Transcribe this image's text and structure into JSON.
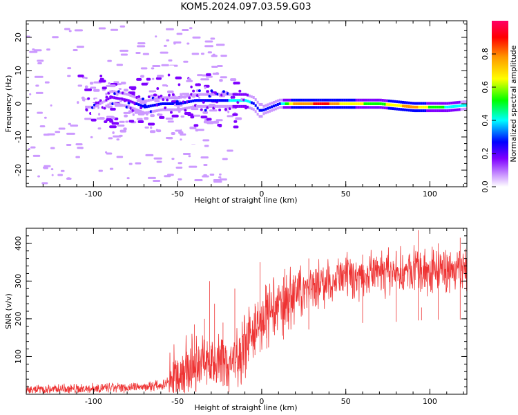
{
  "title": "KOM5.2024.097.03.59.G03",
  "chart_data": [
    {
      "type": "heatmap",
      "xlabel": "Height of straight line (km)",
      "ylabel": "Frequency (Hz)",
      "xlim": [
        -140,
        122
      ],
      "ylim": [
        -25,
        25
      ],
      "x_ticks": [
        "-100",
        "-50",
        "0",
        "50",
        "100"
      ],
      "y_ticks": [
        "20",
        "10",
        "0",
        "-10",
        "-20"
      ],
      "colorbar": {
        "label": "Normalized spectral amplitude",
        "range": [
          0,
          1
        ],
        "ticks": [
          "0.0",
          "0.2",
          "0.4",
          "0.6",
          "0.8"
        ],
        "colors": [
          "#ffffff",
          "#cc99ff",
          "#7f00ff",
          "#0000ff",
          "#00ffff",
          "#00ff00",
          "#ffff00",
          "#ff9900",
          "#ff0000",
          "#ff0066"
        ]
      },
      "ridge": {
        "x": [
          -100,
          -90,
          -80,
          -70,
          -60,
          -50,
          -40,
          -30,
          -20,
          -15,
          -10,
          -5,
          -2,
          0,
          5,
          10,
          20,
          30,
          40,
          50,
          60,
          70,
          80,
          90,
          100,
          110,
          120
        ],
        "y": [
          -1,
          2,
          1,
          -1,
          0,
          0,
          1,
          1,
          1,
          1,
          1,
          0,
          -2,
          -2,
          -1,
          0,
          0,
          0,
          0,
          0,
          0,
          0,
          -0.5,
          -1,
          -1,
          -1,
          -0.5
        ],
        "amplitude": [
          0.12,
          0.2,
          0.25,
          0.3,
          0.3,
          0.35,
          0.35,
          0.35,
          0.4,
          0.45,
          0.45,
          0.35,
          0.3,
          0.3,
          0.3,
          0.35,
          0.85,
          0.9,
          0.9,
          0.7,
          0.65,
          0.6,
          0.75,
          0.85,
          0.6,
          0.5,
          0.4
        ]
      }
    },
    {
      "type": "line",
      "xlabel": "Height of straight line (km)",
      "ylabel": "SNR (v/v)",
      "xlim": [
        -140,
        122
      ],
      "ylim": [
        0,
        440
      ],
      "x_ticks": [
        "-100",
        "-50",
        "0",
        "50",
        "100"
      ],
      "y_ticks": [
        "400",
        "300",
        "200",
        "100"
      ],
      "color": "#ee3333",
      "baseline": {
        "x": [
          -140,
          -100,
          -70,
          -58,
          -55,
          -50,
          -45,
          -40,
          -35,
          -30,
          -25,
          -20,
          -15,
          -10,
          -5,
          0,
          5,
          10,
          15,
          20,
          25,
          30,
          35,
          40,
          50,
          60,
          70,
          80,
          90,
          100,
          110,
          122
        ],
        "y": [
          12,
          15,
          20,
          25,
          40,
          55,
          65,
          75,
          80,
          85,
          90,
          80,
          100,
          130,
          170,
          190,
          210,
          230,
          250,
          265,
          280,
          290,
          295,
          300,
          310,
          315,
          320,
          320,
          325,
          328,
          330,
          330
        ]
      },
      "spikes": [
        {
          "x": -51,
          "y": 90
        },
        {
          "x": -45,
          "y": 140
        },
        {
          "x": -40,
          "y": 185
        },
        {
          "x": -34,
          "y": 200
        },
        {
          "x": -31,
          "y": 300
        },
        {
          "x": -28,
          "y": 240
        },
        {
          "x": -23,
          "y": 190
        },
        {
          "x": -16,
          "y": 280
        },
        {
          "x": -13,
          "y": 150
        },
        {
          "x": -8,
          "y": 190
        },
        {
          "x": -4,
          "y": 240
        },
        {
          "x": -1,
          "y": 350
        },
        {
          "x": 3,
          "y": 250
        },
        {
          "x": 13,
          "y": 310
        },
        {
          "x": 28,
          "y": 360
        },
        {
          "x": 60,
          "y": 370
        },
        {
          "x": 80,
          "y": 380
        },
        {
          "x": 93,
          "y": 435
        },
        {
          "x": 95,
          "y": 230
        },
        {
          "x": 105,
          "y": 400
        },
        {
          "x": 118,
          "y": 415
        }
      ]
    }
  ]
}
